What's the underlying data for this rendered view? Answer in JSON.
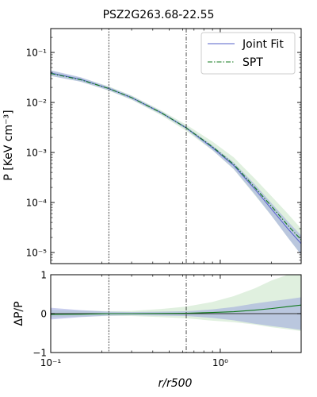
{
  "chart_data": [
    {
      "type": "line",
      "title": "PSZ2G263.68-22.55",
      "xlabel": "",
      "ylabel": "P [KeV cm⁻³]",
      "xscale": "log",
      "yscale": "log",
      "xlim": [
        0.1,
        3.0
      ],
      "ylim": [
        6e-06,
        0.3
      ],
      "grid": false,
      "legend_position": "top-right",
      "yticks": [
        {
          "value": 1e-05,
          "label": "10⁻⁵"
        },
        {
          "value": 0.0001,
          "label": "10⁻⁴"
        },
        {
          "value": 0.001,
          "label": "10⁻³"
        },
        {
          "value": 0.01,
          "label": "10⁻²"
        },
        {
          "value": 0.1,
          "label": "10⁻¹"
        }
      ],
      "vertical_lines": [
        {
          "x": 0.22,
          "style": "dotted"
        },
        {
          "x": 0.63,
          "style": "dashdot"
        }
      ],
      "series": [
        {
          "name": "Joint Fit",
          "style": "solid",
          "x": [
            0.1,
            0.15,
            0.22,
            0.3,
            0.45,
            0.63,
            0.9,
            1.2,
            1.6,
            2.0,
            2.5,
            3.0
          ],
          "y": [
            0.039,
            0.029,
            0.019,
            0.0125,
            0.0062,
            0.0031,
            0.00125,
            0.00055,
            0.000185,
            7.5e-05,
            3e-05,
            1.5e-05
          ],
          "band_lower": [
            0.034,
            0.026,
            0.0175,
            0.0115,
            0.0058,
            0.0029,
            0.00112,
            0.00047,
            0.000145,
            5.5e-05,
            2e-05,
            9e-06
          ],
          "band_upper": [
            0.044,
            0.032,
            0.0205,
            0.0135,
            0.0066,
            0.0033,
            0.00138,
            0.00063,
            0.00023,
            9.8e-05,
            4.2e-05,
            2.2e-05
          ]
        },
        {
          "name": "SPT",
          "style": "dashdot",
          "x": [
            0.1,
            0.15,
            0.22,
            0.3,
            0.45,
            0.63,
            0.9,
            1.2,
            1.6,
            2.0,
            2.5,
            3.0
          ],
          "y": [
            0.038,
            0.0285,
            0.019,
            0.0125,
            0.0062,
            0.0031,
            0.0013,
            0.00058,
            0.0002,
            8.5e-05,
            3.5e-05,
            1.8e-05
          ],
          "band_lower": [
            0.034,
            0.026,
            0.0172,
            0.0113,
            0.0055,
            0.0027,
            0.0011,
            0.00046,
            0.00014,
            5.5e-05,
            2e-05,
            9e-06
          ],
          "band_upper": [
            0.043,
            0.0315,
            0.021,
            0.0138,
            0.0069,
            0.0036,
            0.00165,
            0.0008,
            0.0003,
            0.000135,
            6e-05,
            3e-05
          ]
        }
      ]
    },
    {
      "type": "line",
      "xlabel": "r/r500",
      "ylabel": "ΔP/P",
      "xscale": "log",
      "xlim": [
        0.1,
        3.0
      ],
      "ylim": [
        -1,
        1
      ],
      "grid": false,
      "xticks": [
        {
          "value": 0.1,
          "label": "10⁻¹"
        },
        {
          "value": 1,
          "label": "10⁰"
        }
      ],
      "yticks": [
        {
          "value": -1,
          "label": "−1"
        },
        {
          "value": 0,
          "label": "0"
        },
        {
          "value": 1,
          "label": "1"
        }
      ],
      "vertical_lines": [
        {
          "x": 0.22,
          "style": "dotted"
        },
        {
          "x": 0.63,
          "style": "dashdot"
        }
      ],
      "series": [
        {
          "name": "Joint Fit",
          "x": [
            0.1,
            0.15,
            0.22,
            0.3,
            0.45,
            0.63,
            0.9,
            1.2,
            1.6,
            2.0,
            2.5,
            3.0
          ],
          "y": [
            0,
            0,
            0,
            0,
            0,
            0,
            0,
            0,
            0,
            0,
            0,
            0
          ],
          "band_lower": [
            -0.15,
            -0.09,
            -0.05,
            -0.04,
            -0.05,
            -0.06,
            -0.11,
            -0.17,
            -0.26,
            -0.32,
            -0.37,
            -0.42
          ],
          "band_upper": [
            0.15,
            0.09,
            0.05,
            0.04,
            0.05,
            0.06,
            0.11,
            0.17,
            0.26,
            0.32,
            0.37,
            0.42
          ]
        },
        {
          "name": "SPT",
          "x": [
            0.1,
            0.15,
            0.22,
            0.3,
            0.45,
            0.63,
            0.9,
            1.2,
            1.6,
            2.0,
            2.5,
            3.0
          ],
          "y": [
            -0.02,
            -0.015,
            0,
            0.0,
            0.005,
            0.01,
            0.03,
            0.05,
            0.09,
            0.13,
            0.18,
            0.22
          ],
          "band_lower": [
            -0.1,
            -0.08,
            -0.06,
            -0.06,
            -0.09,
            -0.12,
            -0.18,
            -0.22,
            -0.28,
            -0.35,
            -0.4,
            -0.45
          ],
          "band_upper": [
            0.1,
            0.08,
            0.06,
            0.07,
            0.12,
            0.18,
            0.3,
            0.45,
            0.65,
            0.85,
            1.0,
            1.0
          ]
        }
      ]
    }
  ],
  "colors": {
    "joint_line": "#5560c8",
    "joint_band": "#8c95dd",
    "spt_line": "#117a1c",
    "spt_band": "#9fd09a"
  }
}
